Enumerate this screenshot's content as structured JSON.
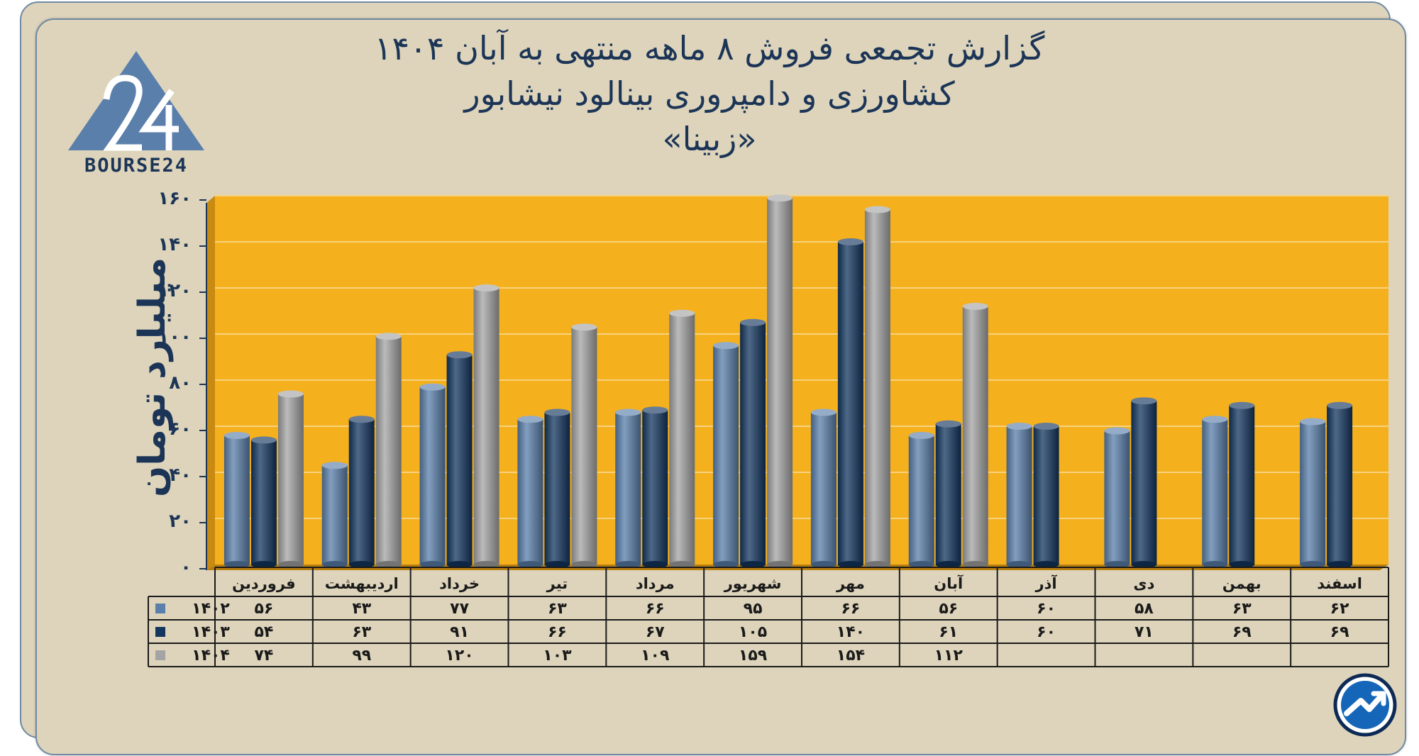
{
  "title": {
    "line1": "گزارش تجمعی فروش ۸ ماهه منتهی به آبان ۱۴۰۴",
    "line2": "کشاورزی و دامپروری بینالود نیشابور",
    "line3": "«زبینا»"
  },
  "logo": {
    "icon": "triangle-24-icon",
    "text": "BOURSE24"
  },
  "emblem_icon": "trend-arrow-icon",
  "colors": {
    "plot_bg": "#f5b01e",
    "s1402": "#5a7fab",
    "s1403": "#13365f",
    "s1404": "#a4a4a4",
    "text": "#1c3557"
  },
  "chart_data": {
    "type": "bar",
    "ylabel": "میلیارد تومان",
    "ylim": [
      0,
      160
    ],
    "yticks": [
      "۰",
      "۲۰",
      "۴۰",
      "۶۰",
      "۸۰",
      "۱۰۰",
      "۱۲۰",
      "۱۴۰",
      "۱۶۰"
    ],
    "categories": [
      "فروردین",
      "اردیبهشت",
      "خرداد",
      "تیر",
      "مرداد",
      "شهریور",
      "مهر",
      "آبان",
      "آذر",
      "دی",
      "بهمن",
      "اسفند"
    ],
    "series": [
      {
        "name": "۱۴۰۲",
        "values": [
          56,
          43,
          77,
          63,
          66,
          95,
          66,
          56,
          60,
          58,
          63,
          62
        ],
        "labels": [
          "۵۶",
          "۴۳",
          "۷۷",
          "۶۳",
          "۶۶",
          "۹۵",
          "۶۶",
          "۵۶",
          "۶۰",
          "۵۸",
          "۶۳",
          "۶۲"
        ]
      },
      {
        "name": "۱۴۰۳",
        "values": [
          54,
          63,
          91,
          66,
          67,
          105,
          140,
          61,
          60,
          71,
          69,
          69
        ],
        "labels": [
          "۵۴",
          "۶۳",
          "۹۱",
          "۶۶",
          "۶۷",
          "۱۰۵",
          "۱۴۰",
          "۶۱",
          "۶۰",
          "۷۱",
          "۶۹",
          "۶۹"
        ]
      },
      {
        "name": "۱۴۰۴",
        "values": [
          74,
          99,
          120,
          103,
          109,
          159,
          154,
          112,
          null,
          null,
          null,
          null
        ],
        "labels": [
          "۷۴",
          "۹۹",
          "۱۲۰",
          "۱۰۳",
          "۱۰۹",
          "۱۵۹",
          "۱۵۴",
          "۱۱۲",
          "",
          "",
          "",
          ""
        ]
      }
    ],
    "grid": true,
    "legend": "data-table"
  }
}
